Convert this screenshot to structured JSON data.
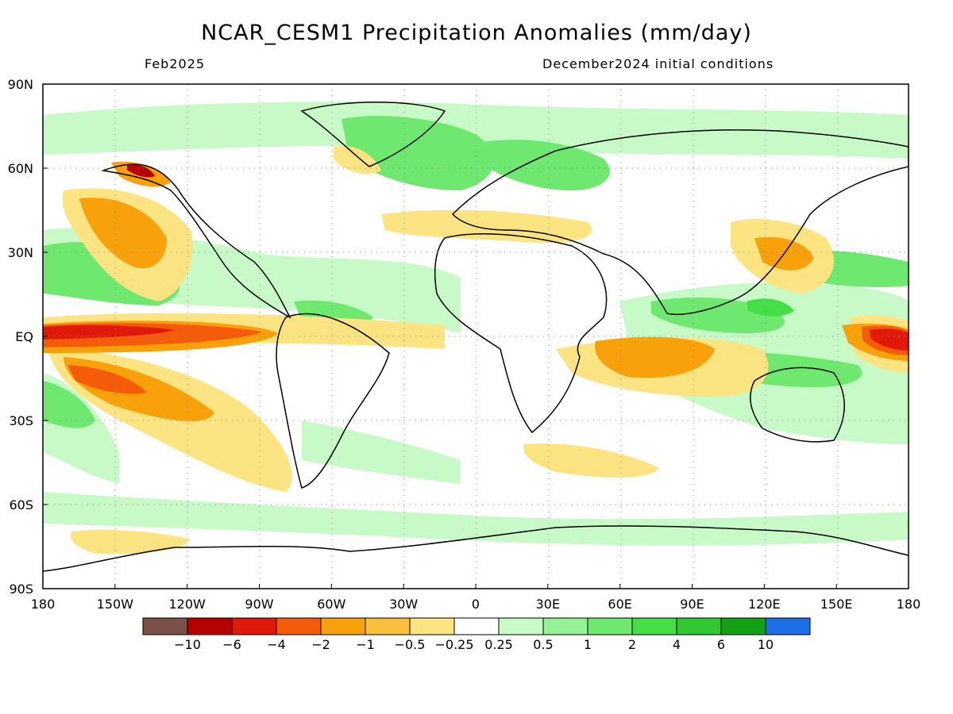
{
  "title": "NCAR_CESM1 Precipitation Anomalies (mm/day)",
  "subtitle_left": "Feb2025",
  "subtitle_right": "December2024 initial conditions",
  "map": {
    "projection": "equirectangular",
    "lon_range": [
      -180,
      180
    ],
    "lat_range": [
      -90,
      90
    ],
    "grid": "dotted"
  },
  "lon_ticks": [
    "180",
    "150W",
    "120W",
    "90W",
    "60W",
    "30W",
    "0",
    "30E",
    "60E",
    "90E",
    "120E",
    "150E",
    "180"
  ],
  "lat_ticks": [
    "90N",
    "60N",
    "30N",
    "EQ",
    "30S",
    "60S",
    "90S"
  ],
  "colorbar": {
    "colors": [
      "#7a5048",
      "#b40000",
      "#e01a0a",
      "#f55c0a",
      "#f9a10a",
      "#fbbf40",
      "#fde482",
      "#ffffff",
      "#c8fac8",
      "#96f096",
      "#6ee86e",
      "#46de46",
      "#32c832",
      "#14a014",
      "#1e6ee6"
    ],
    "labels": [
      "-10",
      "-6",
      "-4",
      "-2",
      "-1",
      "-0.5",
      "-0.25",
      "0.25",
      "0.5",
      "1",
      "2",
      "4",
      "6",
      "10"
    ]
  },
  "legend_placement": "bottom"
}
